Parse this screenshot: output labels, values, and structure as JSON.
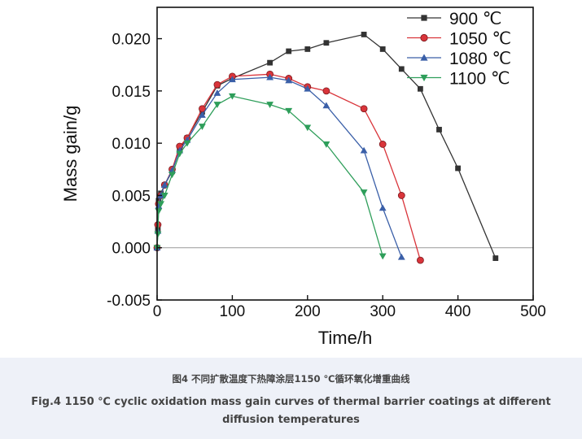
{
  "chart_data": {
    "type": "line",
    "xlabel": "Time/h",
    "ylabel": "Mass gain/g",
    "xlim": [
      0,
      500
    ],
    "ylim": [
      -0.005,
      0.023
    ],
    "xticks": [
      "0",
      "100",
      "200",
      "300",
      "400",
      "500"
    ],
    "yticks": [
      "-0.005",
      "0.000",
      "0.005",
      "0.010",
      "0.015",
      "0.020"
    ],
    "zero_line": true,
    "grid": false,
    "legend": "top-right",
    "series": [
      {
        "name": "900 ℃",
        "color": "#333333",
        "marker": "square",
        "x": [
          0,
          1,
          2,
          5,
          10,
          20,
          30,
          40,
          60,
          80,
          100,
          150,
          175,
          200,
          225,
          275,
          300,
          325,
          350,
          375,
          400,
          450
        ],
        "y": [
          0.0,
          0.0018,
          0.0045,
          0.0052,
          0.006,
          0.0073,
          0.0095,
          0.0105,
          0.013,
          0.0155,
          0.0162,
          0.0177,
          0.0188,
          0.019,
          0.0196,
          0.0204,
          0.019,
          0.0171,
          0.0152,
          0.0113,
          0.0076,
          -0.001
        ]
      },
      {
        "name": "1050 ℃",
        "color": "#d9343a",
        "marker": "circle",
        "x": [
          0,
          1,
          2,
          5,
          10,
          20,
          30,
          40,
          60,
          80,
          100,
          150,
          175,
          200,
          225,
          275,
          300,
          325,
          350
        ],
        "y": [
          0.0,
          0.0022,
          0.0042,
          0.005,
          0.006,
          0.0075,
          0.0097,
          0.0105,
          0.0133,
          0.0156,
          0.0164,
          0.0166,
          0.0162,
          0.0154,
          0.015,
          0.0133,
          0.0099,
          0.005,
          -0.0012
        ]
      },
      {
        "name": "1080 ℃",
        "color": "#3a5fa8",
        "marker": "triangle-up",
        "x": [
          0,
          1,
          2,
          5,
          10,
          20,
          30,
          40,
          60,
          80,
          100,
          150,
          175,
          200,
          225,
          275,
          300,
          325
        ],
        "y": [
          0.0,
          0.0016,
          0.004,
          0.005,
          0.006,
          0.0074,
          0.0093,
          0.0103,
          0.0127,
          0.0148,
          0.0161,
          0.0163,
          0.016,
          0.0152,
          0.0136,
          0.0093,
          0.0038,
          -0.0009
        ]
      },
      {
        "name": "1100 ℃",
        "color": "#2e9e5a",
        "marker": "triangle-down",
        "x": [
          0,
          1,
          2,
          5,
          10,
          20,
          30,
          40,
          60,
          80,
          100,
          150,
          175,
          200,
          225,
          275,
          300
        ],
        "y": [
          0.0,
          0.0013,
          0.0035,
          0.0042,
          0.005,
          0.007,
          0.009,
          0.01,
          0.0116,
          0.0137,
          0.0145,
          0.0137,
          0.0131,
          0.0115,
          0.0099,
          0.0053,
          -0.0008
        ]
      }
    ]
  },
  "caption": {
    "cn": "图4 不同扩散温度下热障涂层1150 ℃循环氧化增重曲线",
    "en": "Fig.4 1150 ℃ cyclic oxidation mass gain curves of thermal barrier coatings at different diffusion temperatures"
  }
}
